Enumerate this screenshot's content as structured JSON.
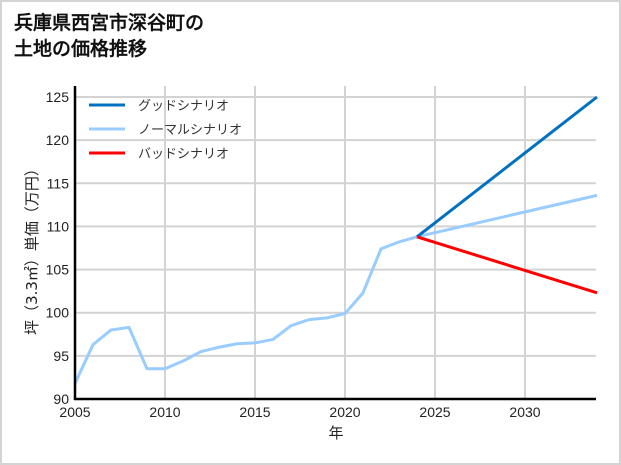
{
  "title_lines": [
    "兵庫県西宮市深谷町の",
    "土地の価格推移"
  ],
  "chart_data": {
    "type": "line",
    "title": "兵庫県西宮市深谷町の土地の価格推移",
    "xlabel": "年",
    "ylabel": "坪（3.3㎡）単価（万円）",
    "xlim": [
      2005,
      2034
    ],
    "ylim": [
      90,
      126
    ],
    "x_ticks": [
      2005,
      2010,
      2015,
      2020,
      2025,
      2030
    ],
    "y_ticks": [
      90,
      95,
      100,
      105,
      110,
      115,
      120,
      125
    ],
    "grid": true,
    "legend_position": "upper left",
    "series": [
      {
        "name": "グッドシナリオ",
        "color": "#0070c0",
        "x": [
          2024,
          2034
        ],
        "values": [
          108.8,
          125.0
        ]
      },
      {
        "name": "ノーマルシナリオ",
        "color": "#99ccff",
        "x": [
          2005,
          2006,
          2007,
          2008,
          2009,
          2010,
          2011,
          2012,
          2013,
          2014,
          2015,
          2016,
          2017,
          2018,
          2019,
          2020,
          2021,
          2022,
          2023,
          2024,
          2034
        ],
        "values": [
          91.8,
          96.3,
          98.0,
          98.3,
          93.5,
          93.5,
          94.4,
          95.5,
          96.0,
          96.4,
          96.5,
          96.9,
          98.5,
          99.2,
          99.4,
          99.9,
          102.3,
          107.4,
          108.2,
          108.8,
          113.6
        ]
      },
      {
        "name": "バッドシナリオ",
        "color": "#ff0000",
        "x": [
          2024,
          2034
        ],
        "values": [
          108.8,
          102.3
        ]
      }
    ]
  }
}
